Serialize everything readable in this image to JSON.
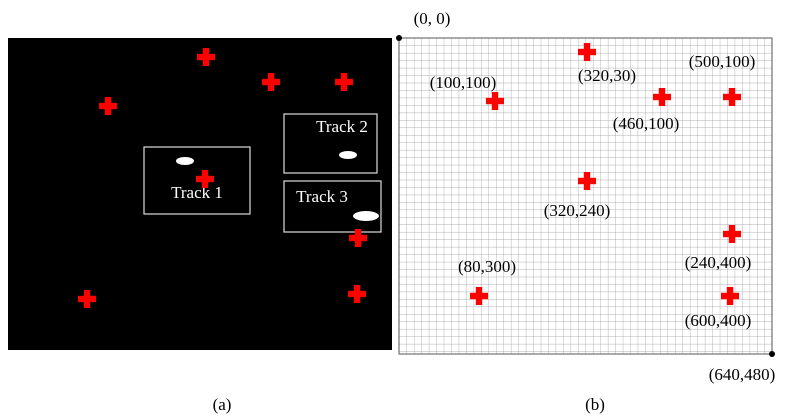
{
  "panel_a": {
    "tracks": [
      "Track 1",
      "Track 2",
      "Track 3"
    ],
    "caption": "(a)"
  },
  "panel_b": {
    "origin": "(0, 0)",
    "corner": "(640,480)",
    "points": [
      "(320,30)",
      "(500,100)",
      "(100,100)",
      "(460,100)",
      "(320,240)",
      "(240,400)",
      "(80,300)",
      "(600,400)"
    ],
    "caption": "(b)"
  }
}
